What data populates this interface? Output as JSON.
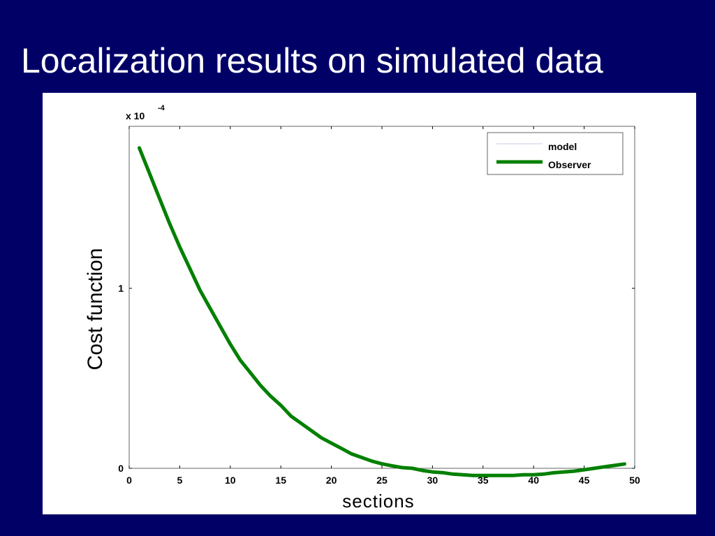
{
  "slide": {
    "title": "Localization results on simulated data"
  },
  "chart_data": {
    "type": "line",
    "title": "",
    "xlabel": "sections",
    "ylabel": "Cost function",
    "y_exponent_label": "x 10",
    "y_exponent": "-4",
    "xlim": [
      0,
      50
    ],
    "ylim": [
      0,
      1.9
    ],
    "x_ticks": [
      0,
      5,
      10,
      15,
      20,
      25,
      30,
      35,
      40,
      45,
      50
    ],
    "y_ticks": [
      0,
      1
    ],
    "x_tick_labels": [
      "0",
      "5",
      "10",
      "15",
      "20",
      "25",
      "30",
      "35",
      "40",
      "45",
      "50"
    ],
    "y_tick_labels": [
      "0",
      "1"
    ],
    "grid": false,
    "legend_position": "top-right",
    "series": [
      {
        "name": "model",
        "color": "#c8c8e8",
        "x": [],
        "y": []
      },
      {
        "name": "Observer",
        "color": "#008000",
        "x": [
          1,
          2,
          3,
          4,
          5,
          6,
          7,
          8,
          9,
          10,
          11,
          12,
          13,
          14,
          15,
          16,
          17,
          18,
          19,
          20,
          21,
          22,
          23,
          24,
          25,
          26,
          27,
          28,
          29,
          30,
          31,
          32,
          33,
          34,
          35,
          36,
          37,
          38,
          39,
          40,
          41,
          42,
          43,
          44,
          45,
          46,
          47,
          48,
          49
        ],
        "y": [
          1.78,
          1.64,
          1.5,
          1.36,
          1.23,
          1.11,
          0.99,
          0.89,
          0.79,
          0.69,
          0.6,
          0.53,
          0.46,
          0.4,
          0.35,
          0.29,
          0.25,
          0.21,
          0.17,
          0.14,
          0.11,
          0.08,
          0.06,
          0.04,
          0.025,
          0.014,
          0.004,
          0.0,
          -0.012,
          -0.02,
          -0.024,
          -0.032,
          -0.036,
          -0.04,
          -0.04,
          -0.04,
          -0.04,
          -0.04,
          -0.036,
          -0.036,
          -0.032,
          -0.025,
          -0.02,
          -0.016,
          -0.008,
          0.0,
          0.008,
          0.016,
          0.024
        ]
      }
    ]
  }
}
